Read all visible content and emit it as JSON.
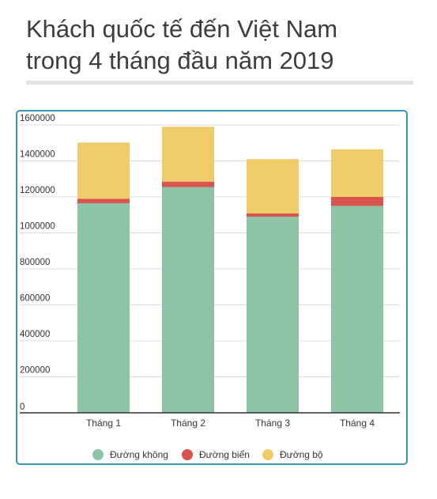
{
  "title": {
    "line1": "Khách quốc tế đến Việt Nam",
    "line2": "trong 4 tháng đầu năm 2019"
  },
  "colors": {
    "duong_khong": "#8dc4a6",
    "duong_bien": "#d9534f",
    "duong_bo": "#f0cb6a"
  },
  "chart_data": {
    "type": "bar",
    "stacked": true,
    "categories": [
      "Tháng 1",
      "Tháng 2",
      "Tháng 3",
      "Tháng 4"
    ],
    "series": [
      {
        "name": "Đường không",
        "color": "#8dc4a6",
        "values": [
          1165000,
          1255000,
          1090000,
          1150000
        ]
      },
      {
        "name": "Đường biển",
        "color": "#d9534f",
        "values": [
          25000,
          30000,
          18000,
          50000
        ]
      },
      {
        "name": "Đường bộ",
        "color": "#f0cb6a",
        "values": [
          312000,
          305000,
          302000,
          265000
        ]
      }
    ],
    "ylim": [
      0,
      1600000
    ],
    "yticks": [
      "1600000",
      "1400000",
      "1200000",
      "1000000",
      "800000",
      "600000",
      "400000",
      "200000",
      "0"
    ],
    "grid": true,
    "legend": "bottom"
  }
}
